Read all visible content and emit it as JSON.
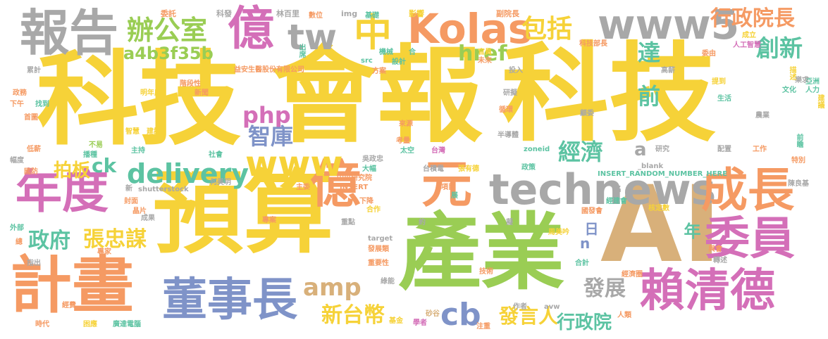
{
  "title": "",
  "palette": {
    "yellow": "#F6D238",
    "gray": "#A8A8A8",
    "pink": "#D46FB8",
    "orange": "#F59A63",
    "green": "#9ACD54",
    "blue": "#7F93C8",
    "teal": "#5CC3A2",
    "tan": "#D8B07A"
  },
  "words": [
    {
      "text": "科技",
      "color": "yellow"
    },
    {
      "text": "會報",
      "color": "yellow"
    },
    {
      "text": "科技",
      "color": "yellow"
    },
    {
      "text": "預算",
      "color": "yellow"
    },
    {
      "text": "產業",
      "color": "green"
    },
    {
      "text": "AI",
      "color": "tan"
    },
    {
      "text": "報告",
      "color": "gray"
    },
    {
      "text": "億",
      "color": "pink"
    },
    {
      "text": "tw",
      "color": "gray"
    },
    {
      "text": "中",
      "color": "yellow"
    },
    {
      "text": "Kolas",
      "color": "orange"
    },
    {
      "text": "www5",
      "color": "gray"
    },
    {
      "text": "行政院長",
      "color": "orange"
    },
    {
      "text": "創新",
      "color": "teal"
    },
    {
      "text": "辦公室",
      "color": "green"
    },
    {
      "text": "a4b3f35b",
      "color": "green"
    },
    {
      "text": "包括",
      "color": "yellow"
    },
    {
      "text": "年度",
      "color": "pink"
    },
    {
      "text": "億",
      "color": "orange"
    },
    {
      "text": "元",
      "color": "orange"
    },
    {
      "text": "technews",
      "color": "gray"
    },
    {
      "text": "成長",
      "color": "orange"
    },
    {
      "text": "委員",
      "color": "pink"
    },
    {
      "text": "計畫",
      "color": "orange"
    },
    {
      "text": "董事長",
      "color": "blue"
    },
    {
      "text": "賴清德",
      "color": "pink"
    },
    {
      "text": "www",
      "color": "yellow"
    },
    {
      "text": "php",
      "color": "pink"
    },
    {
      "text": "delivery",
      "color": "teal"
    },
    {
      "text": "政府",
      "color": "teal"
    },
    {
      "text": "張忠謀",
      "color": "yellow"
    },
    {
      "text": "智庫",
      "color": "blue"
    },
    {
      "text": "經濟",
      "color": "teal"
    },
    {
      "text": "拍板",
      "color": "yellow"
    },
    {
      "text": "ck",
      "color": "teal"
    },
    {
      "text": "amp",
      "color": "tan"
    },
    {
      "text": "cb",
      "color": "blue"
    },
    {
      "text": "發展",
      "color": "gray"
    },
    {
      "text": "發言人",
      "color": "yellow"
    },
    {
      "text": "行政院",
      "color": "teal"
    },
    {
      "text": "新台幣",
      "color": "yellow"
    },
    {
      "text": "href",
      "color": "green"
    },
    {
      "text": "達",
      "color": "teal"
    },
    {
      "text": "前",
      "color": "teal"
    },
    {
      "text": "日",
      "color": "blue"
    },
    {
      "text": "年",
      "color": "teal"
    },
    {
      "text": "n",
      "color": "blue"
    },
    {
      "text": "a",
      "color": "gray"
    },
    {
      "text": "益安生醫股份有限公司",
      "color": "orange"
    },
    {
      "text": "INSERT_RANDOM_NUMBER_HERE",
      "color": "teal"
    },
    {
      "text": "shutterstock",
      "color": "gray"
    },
    {
      "text": "zoneid",
      "color": "teal"
    },
    {
      "text": "_blank",
      "color": "gray"
    },
    {
      "text": "委託",
      "color": "orange"
    },
    {
      "text": "科發",
      "color": "gray"
    },
    {
      "text": "林百里",
      "color": "gray"
    },
    {
      "text": "數位",
      "color": "orange"
    },
    {
      "text": "img",
      "color": "gray"
    },
    {
      "text": "基礎",
      "color": "teal"
    },
    {
      "text": "影響",
      "color": "yellow"
    },
    {
      "text": "副院長",
      "color": "orange"
    },
    {
      "text": "機械",
      "color": "teal"
    },
    {
      "text": "合",
      "color": "teal"
    },
    {
      "text": "設計",
      "color": "teal"
    },
    {
      "text": "方案",
      "color": "orange"
    },
    {
      "text": "未來",
      "color": "orange"
    },
    {
      "text": "官員",
      "color": "yellow"
    },
    {
      "text": "科技部長",
      "color": "orange"
    },
    {
      "text": "人工智慧",
      "color": "pink"
    },
    {
      "text": "委由",
      "color": "orange"
    },
    {
      "text": "成立",
      "color": "yellow"
    },
    {
      "text": "高薪",
      "color": "gray"
    },
    {
      "text": "投入",
      "color": "gray"
    },
    {
      "text": "研擬",
      "color": "gray"
    },
    {
      "text": "循環",
      "color": "orange"
    },
    {
      "text": "顧委",
      "color": "gray"
    },
    {
      "text": "生活",
      "color": "teal"
    },
    {
      "text": "農業",
      "color": "gray"
    },
    {
      "text": "研究",
      "color": "gray"
    },
    {
      "text": "工作",
      "color": "orange"
    },
    {
      "text": "配置",
      "color": "gray"
    },
    {
      "text": "特別",
      "color": "orange"
    },
    {
      "text": "陳良基",
      "color": "gray"
    },
    {
      "text": "核定數",
      "color": "yellow"
    },
    {
      "text": "周美吟",
      "color": "yellow"
    },
    {
      "text": "國發會",
      "color": "orange"
    },
    {
      "text": "經建會",
      "color": "teal"
    },
    {
      "text": "經濟圈",
      "color": "orange"
    },
    {
      "text": "與會",
      "color": "orange"
    },
    {
      "text": "轉述",
      "color": "gray"
    },
    {
      "text": "累計",
      "color": "gray"
    },
    {
      "text": "政務",
      "color": "orange"
    },
    {
      "text": "下午",
      "color": "orange"
    },
    {
      "text": "找到",
      "color": "teal"
    },
    {
      "text": "首圖",
      "color": "orange"
    },
    {
      "text": "明年度",
      "color": "yellow"
    },
    {
      "text": "階段性",
      "color": "orange"
    },
    {
      "text": "新聞",
      "color": "orange"
    },
    {
      "text": "智慧",
      "color": "yellow"
    },
    {
      "text": "建設",
      "color": "yellow"
    },
    {
      "text": "不易",
      "color": "green"
    },
    {
      "text": "主持",
      "color": "teal"
    },
    {
      "text": "社會",
      "color": "teal"
    },
    {
      "text": "播種",
      "color": "teal"
    },
    {
      "text": "低薪",
      "color": "orange"
    },
    {
      "text": "幅度",
      "color": "gray"
    },
    {
      "text": "國防",
      "color": "orange"
    },
    {
      "text": "封面",
      "color": "orange"
    },
    {
      "text": "晶片",
      "color": "orange"
    },
    {
      "text": "成果",
      "color": "gray"
    },
    {
      "text": "外部",
      "color": "teal"
    },
    {
      "text": "總",
      "color": "orange"
    },
    {
      "text": "專家",
      "color": "orange"
    },
    {
      "text": "指出",
      "color": "gray"
    },
    {
      "text": "經費",
      "color": "orange"
    },
    {
      "text": "時代",
      "color": "orange"
    },
    {
      "text": "困應",
      "color": "yellow"
    },
    {
      "text": "廣達電腦",
      "color": "teal"
    },
    {
      "text": "基金",
      "color": "yellow"
    },
    {
      "text": "學者",
      "color": "pink"
    },
    {
      "text": "作者",
      "color": "gray"
    },
    {
      "text": "avw",
      "color": "gray"
    },
    {
      "text": "人類",
      "color": "orange"
    },
    {
      "text": "注重",
      "color": "orange"
    },
    {
      "text": "技術",
      "color": "orange"
    },
    {
      "text": "合計",
      "color": "teal"
    },
    {
      "text": "綠能",
      "color": "gray"
    },
    {
      "text": "重要性",
      "color": "orange"
    },
    {
      "text": "發展類",
      "color": "orange"
    },
    {
      "text": "重點",
      "color": "gray"
    },
    {
      "text": "約",
      "color": "gray"
    },
    {
      "text": "target",
      "color": "gray"
    },
    {
      "text": "專案",
      "color": "orange"
    },
    {
      "text": "合作",
      "color": "yellow"
    },
    {
      "text": "下降",
      "color": "orange"
    },
    {
      "text": "INSERT",
      "color": "orange"
    },
    {
      "text": "中央研究院",
      "color": "orange"
    },
    {
      "text": "大幅",
      "color": "teal"
    },
    {
      "text": "吳政忠",
      "color": "gray"
    },
    {
      "text": "太空",
      "color": "teal"
    },
    {
      "text": "台灣",
      "color": "pink"
    },
    {
      "text": "台積電",
      "color": "gray"
    },
    {
      "text": "張有德",
      "color": "yellow"
    },
    {
      "text": "政策",
      "color": "teal"
    },
    {
      "text": "考量",
      "color": "orange"
    },
    {
      "text": "半導體",
      "color": "gray"
    },
    {
      "text": "來源",
      "color": "orange"
    },
    {
      "text": "項目",
      "color": "orange"
    },
    {
      "text": "何美玥",
      "color": "gray"
    },
    {
      "text": "主委",
      "color": "orange"
    },
    {
      "text": "src",
      "color": "teal"
    },
    {
      "text": "提到",
      "color": "yellow"
    },
    {
      "text": "文化",
      "color": "teal"
    },
    {
      "text": "亞洲",
      "color": "teal"
    },
    {
      "text": "人力",
      "color": "teal"
    },
    {
      "text": "樂求",
      "color": "gray"
    },
    {
      "text": "描述",
      "color": "yellow"
    },
    {
      "text": "出席",
      "color": "teal"
    },
    {
      "text": "前瞻",
      "color": "teal"
    },
    {
      "text": "建議",
      "color": "yellow"
    },
    {
      "text": "新",
      "color": "gray"
    },
    {
      "text": "展",
      "color": "teal"
    },
    {
      "text": "名",
      "color": "gray"
    },
    {
      "text": "擬",
      "color": "gray"
    },
    {
      "text": "砂谷",
      "color": "tan"
    }
  ]
}
